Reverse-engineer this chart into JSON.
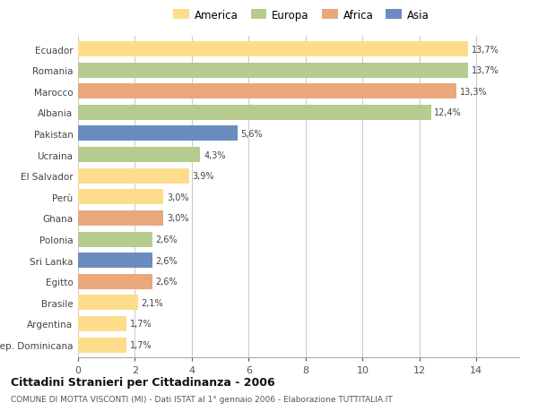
{
  "countries": [
    "Ecuador",
    "Romania",
    "Marocco",
    "Albania",
    "Pakistan",
    "Ucraina",
    "El Salvador",
    "Perù",
    "Ghana",
    "Polonia",
    "Sri Lanka",
    "Egitto",
    "Brasile",
    "Argentina",
    "Rep. Dominicana"
  ],
  "values": [
    13.7,
    13.7,
    13.3,
    12.4,
    5.6,
    4.3,
    3.9,
    3.0,
    3.0,
    2.6,
    2.6,
    2.6,
    2.1,
    1.7,
    1.7
  ],
  "labels": [
    "13,7%",
    "13,7%",
    "13,3%",
    "12,4%",
    "5,6%",
    "4,3%",
    "3,9%",
    "3,0%",
    "3,0%",
    "2,6%",
    "2,6%",
    "2,6%",
    "2,1%",
    "1,7%",
    "1,7%"
  ],
  "colors": [
    "#FDDD8C",
    "#B5CC8E",
    "#E8A87C",
    "#B5CC8E",
    "#6B8CBF",
    "#B5CC8E",
    "#FDDD8C",
    "#FDDD8C",
    "#E8A87C",
    "#B5CC8E",
    "#6B8CBF",
    "#E8A87C",
    "#FDDD8C",
    "#FDDD8C",
    "#FDDD8C"
  ],
  "legend_labels": [
    "America",
    "Europa",
    "Africa",
    "Asia"
  ],
  "legend_colors": [
    "#FDDD8C",
    "#B5CC8E",
    "#E8A87C",
    "#6B8CBF"
  ],
  "title": "Cittadini Stranieri per Cittadinanza - 2006",
  "subtitle": "COMUNE DI MOTTA VISCONTI (MI) - Dati ISTAT al 1° gennaio 2006 - Elaborazione TUTTITALIA.IT",
  "xlim_max": 15.5,
  "xticks": [
    0,
    2,
    4,
    6,
    8,
    10,
    12,
    14
  ],
  "background_color": "#ffffff",
  "grid_color": "#cccccc",
  "bar_height": 0.72
}
